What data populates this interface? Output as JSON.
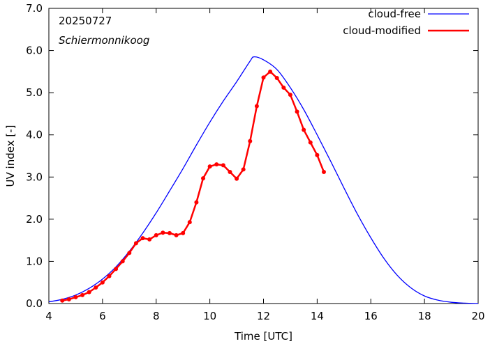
{
  "chart_data": {
    "type": "line",
    "date_label": "20250727",
    "location_label": "Schiermonnikoog",
    "xlabel": "Time  [UTC]",
    "ylabel": "UV index  [-]",
    "xlim": [
      4,
      20
    ],
    "ylim": [
      0,
      7
    ],
    "x_ticks": [
      4,
      6,
      8,
      10,
      12,
      14,
      16,
      18,
      20
    ],
    "x_tick_labels": [
      "4",
      "6",
      "8",
      "10",
      "12",
      "14",
      "16",
      "18",
      "20"
    ],
    "y_ticks": [
      0,
      1,
      2,
      3,
      4,
      5,
      6,
      7
    ],
    "y_tick_labels": [
      "0.0",
      "1.0",
      "2.0",
      "3.0",
      "4.0",
      "5.0",
      "6.0",
      "7.0"
    ],
    "legend_position": "top-right",
    "series": [
      {
        "name": "cloud-free",
        "color": "#0000ff",
        "style": "line",
        "x": [
          4.0,
          4.5,
          5.0,
          5.5,
          6.0,
          6.5,
          7.0,
          7.5,
          8.0,
          8.5,
          9.0,
          9.5,
          10.0,
          10.5,
          11.0,
          11.5,
          11.65,
          12.0,
          12.5,
          13.0,
          13.5,
          14.0,
          14.5,
          15.0,
          15.5,
          16.0,
          16.5,
          17.0,
          17.5,
          18.0,
          18.5,
          19.0,
          19.5,
          20.0
        ],
        "y": [
          0.04,
          0.1,
          0.2,
          0.36,
          0.58,
          0.87,
          1.24,
          1.67,
          2.15,
          2.67,
          3.2,
          3.76,
          4.3,
          4.8,
          5.26,
          5.75,
          5.85,
          5.78,
          5.55,
          5.12,
          4.6,
          4.0,
          3.38,
          2.74,
          2.12,
          1.56,
          1.06,
          0.66,
          0.37,
          0.18,
          0.08,
          0.03,
          0.01,
          0.0
        ]
      },
      {
        "name": "cloud-modified",
        "color": "#ff0000",
        "style": "line-points",
        "x": [
          4.5,
          4.75,
          5.0,
          5.25,
          5.5,
          5.75,
          6.0,
          6.25,
          6.5,
          6.75,
          7.0,
          7.25,
          7.5,
          7.75,
          8.0,
          8.25,
          8.5,
          8.75,
          9.0,
          9.25,
          9.5,
          9.75,
          10.0,
          10.25,
          10.5,
          10.75,
          11.0,
          11.25,
          11.5,
          11.75,
          12.0,
          12.25,
          12.5,
          12.75,
          13.0,
          13.25,
          13.5,
          13.75,
          14.0,
          14.25
        ],
        "y": [
          0.07,
          0.1,
          0.15,
          0.2,
          0.27,
          0.38,
          0.5,
          0.65,
          0.82,
          1.0,
          1.2,
          1.43,
          1.55,
          1.52,
          1.62,
          1.68,
          1.67,
          1.62,
          1.67,
          1.93,
          2.4,
          2.97,
          3.25,
          3.3,
          3.28,
          3.12,
          2.96,
          3.18,
          3.85,
          4.68,
          5.36,
          5.5,
          5.35,
          5.12,
          4.95,
          4.55,
          4.12,
          3.82,
          3.52,
          3.12
        ]
      }
    ]
  }
}
